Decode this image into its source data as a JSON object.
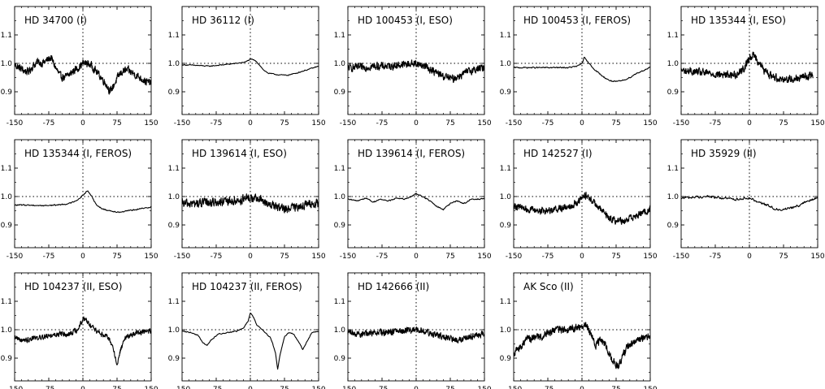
{
  "chart_data": [
    {
      "type": "line",
      "title": "HD 34700 (I)",
      "xticks": [
        -150,
        -75,
        0,
        75,
        150
      ],
      "yticks": [
        0.9,
        1.0,
        1.1
      ],
      "ytick_labels": [
        "0.9",
        "1.0",
        "1.1"
      ],
      "xlim": [
        -150,
        150
      ],
      "ylim": [
        0.82,
        1.2
      ],
      "series": [
        {
          "noise": 0.012,
          "x": [
            -150,
            -140,
            -130,
            -120,
            -110,
            -100,
            -90,
            -80,
            -70,
            -60,
            -50,
            -40,
            -30,
            -20,
            -10,
            0,
            10,
            20,
            30,
            40,
            50,
            60,
            70,
            80,
            90,
            100,
            110,
            120,
            130,
            140,
            150
          ],
          "y": [
            0.995,
            0.985,
            0.975,
            0.97,
            0.99,
            1.005,
            1.0,
            1.01,
            1.02,
            0.985,
            0.955,
            0.95,
            0.96,
            0.975,
            0.985,
            1.0,
            1.0,
            0.99,
            0.97,
            0.95,
            0.93,
            0.9,
            0.93,
            0.96,
            0.975,
            0.975,
            0.965,
            0.955,
            0.945,
            0.935,
            0.93
          ]
        }
      ]
    },
    {
      "type": "line",
      "title": "HD 36112 (I)",
      "xticks": [
        -150,
        -75,
        0,
        75,
        150
      ],
      "yticks": [
        0.9,
        1.0,
        1.1
      ],
      "ytick_labels": [
        "0.9",
        "1.0",
        "1.1"
      ],
      "xlim": [
        -150,
        150
      ],
      "ylim": [
        0.82,
        1.2
      ],
      "series": [
        {
          "noise": 0.0015,
          "x": [
            -150,
            -120,
            -90,
            -60,
            -30,
            -10,
            0,
            10,
            20,
            30,
            40,
            60,
            80,
            100,
            120,
            140,
            150
          ],
          "y": [
            0.995,
            0.993,
            0.99,
            0.995,
            1.0,
            1.005,
            1.015,
            1.01,
            0.995,
            0.975,
            0.965,
            0.96,
            0.958,
            0.965,
            0.975,
            0.985,
            0.99
          ]
        }
      ]
    },
    {
      "type": "line",
      "title": "HD 100453 (I, ESO)",
      "xticks": [
        -150,
        -75,
        0,
        75,
        150
      ],
      "yticks": [
        0.9,
        1.0,
        1.1
      ],
      "ytick_labels": [
        "0.9",
        "1.0",
        "1.1"
      ],
      "xlim": [
        -150,
        150
      ],
      "ylim": [
        0.82,
        1.2
      ],
      "series": [
        {
          "noise": 0.012,
          "x": [
            -150,
            -120,
            -90,
            -60,
            -30,
            0,
            20,
            40,
            60,
            80,
            100,
            120,
            150
          ],
          "y": [
            0.985,
            0.985,
            0.99,
            0.99,
            0.995,
            1.0,
            0.99,
            0.97,
            0.955,
            0.945,
            0.96,
            0.975,
            0.985
          ]
        }
      ]
    },
    {
      "type": "line",
      "title": "HD 100453 (I, FEROS)",
      "xticks": [
        -150,
        -75,
        0,
        75,
        150
      ],
      "yticks": [
        0.9,
        1.0,
        1.1
      ],
      "ytick_labels": [
        "0.9",
        "1.0",
        "1.1"
      ],
      "xlim": [
        -150,
        150
      ],
      "ylim": [
        0.82,
        1.2
      ],
      "series": [
        {
          "noise": 0.002,
          "x": [
            -150,
            -120,
            -90,
            -60,
            -30,
            -10,
            0,
            5,
            15,
            30,
            45,
            60,
            75,
            90,
            105,
            120,
            135,
            150
          ],
          "y": [
            0.985,
            0.985,
            0.985,
            0.985,
            0.985,
            0.99,
            1.0,
            1.02,
            1.0,
            0.975,
            0.955,
            0.94,
            0.935,
            0.94,
            0.95,
            0.965,
            0.975,
            0.985
          ]
        }
      ]
    },
    {
      "type": "line",
      "title": "HD 135344 (I, ESO)",
      "xticks": [
        -150,
        -75,
        0,
        75,
        150
      ],
      "yticks": [
        0.9,
        1.0,
        1.1
      ],
      "ytick_labels": [
        "0.9",
        "1.0",
        "1.1"
      ],
      "xlim": [
        -150,
        150
      ],
      "ylim": [
        0.82,
        1.2
      ],
      "series": [
        {
          "noise": 0.012,
          "x": [
            -150,
            -120,
            -90,
            -60,
            -30,
            -10,
            0,
            10,
            20,
            35,
            50,
            70,
            90,
            110,
            130,
            140
          ],
          "y": [
            0.975,
            0.97,
            0.965,
            0.96,
            0.96,
            0.985,
            1.02,
            1.03,
            1.005,
            0.97,
            0.955,
            0.945,
            0.945,
            0.95,
            0.955,
            0.96
          ]
        }
      ]
    },
    {
      "type": "line",
      "title": "HD 135344 (I, FEROS)",
      "xticks": [
        -150,
        -75,
        0,
        75,
        150
      ],
      "yticks": [
        0.9,
        1.0,
        1.1
      ],
      "ytick_labels": [
        "0.9",
        "1.0",
        "1.1"
      ],
      "xlim": [
        -150,
        150
      ],
      "ylim": [
        0.82,
        1.2
      ],
      "series": [
        {
          "noise": 0.002,
          "x": [
            -150,
            -120,
            -90,
            -60,
            -30,
            -10,
            0,
            10,
            20,
            30,
            45,
            60,
            80,
            100,
            120,
            140,
            150
          ],
          "y": [
            0.97,
            0.97,
            0.968,
            0.97,
            0.975,
            0.99,
            1.005,
            1.02,
            1.0,
            0.97,
            0.955,
            0.95,
            0.945,
            0.95,
            0.955,
            0.96,
            0.965
          ]
        }
      ]
    },
    {
      "type": "line",
      "title": "HD 139614 (I, ESO)",
      "xticks": [
        -150,
        -75,
        0,
        75,
        150
      ],
      "yticks": [
        0.9,
        1.0,
        1.1
      ],
      "ytick_labels": [
        "0.9",
        "1.0",
        "1.1"
      ],
      "xlim": [
        -150,
        150
      ],
      "ylim": [
        0.82,
        1.2
      ],
      "series": [
        {
          "noise": 0.014,
          "x": [
            -150,
            -120,
            -90,
            -60,
            -30,
            0,
            20,
            40,
            60,
            80,
            100,
            120,
            150
          ],
          "y": [
            0.975,
            0.975,
            0.98,
            0.98,
            0.985,
            0.995,
            0.99,
            0.975,
            0.96,
            0.955,
            0.965,
            0.97,
            0.975
          ]
        }
      ]
    },
    {
      "type": "line",
      "title": "HD 139614 (I, FEROS)",
      "xticks": [
        -150,
        -75,
        0,
        75,
        150
      ],
      "yticks": [
        0.9,
        1.0,
        1.1
      ],
      "ytick_labels": [
        "0.9",
        "1.0",
        "1.1"
      ],
      "xlim": [
        -150,
        150
      ],
      "ylim": [
        0.82,
        1.2
      ],
      "series": [
        {
          "noise": 0.002,
          "x": [
            -150,
            -130,
            -110,
            -95,
            -80,
            -60,
            -40,
            -25,
            -10,
            0,
            15,
            30,
            45,
            60,
            75,
            90,
            105,
            120,
            140,
            150
          ],
          "y": [
            0.99,
            0.985,
            0.995,
            0.98,
            0.99,
            0.985,
            0.995,
            0.99,
            1.0,
            1.01,
            1.0,
            0.985,
            0.965,
            0.955,
            0.975,
            0.985,
            0.975,
            0.99,
            0.99,
            0.995
          ]
        }
      ]
    },
    {
      "type": "line",
      "title": "HD 142527 (I)",
      "xticks": [
        -150,
        -75,
        0,
        75,
        150
      ],
      "yticks": [
        0.9,
        1.0,
        1.1
      ],
      "ytick_labels": [
        "0.9",
        "1.0",
        "1.1"
      ],
      "xlim": [
        -150,
        150
      ],
      "ylim": [
        0.82,
        1.2
      ],
      "series": [
        {
          "noise": 0.011,
          "x": [
            -150,
            -120,
            -90,
            -60,
            -30,
            -10,
            0,
            10,
            20,
            40,
            60,
            75,
            90,
            110,
            130,
            150
          ],
          "y": [
            0.97,
            0.955,
            0.95,
            0.955,
            0.965,
            0.98,
            0.995,
            1.005,
            0.99,
            0.955,
            0.925,
            0.915,
            0.915,
            0.925,
            0.94,
            0.955
          ]
        }
      ]
    },
    {
      "type": "line",
      "title": "HD 35929 (II)",
      "xticks": [
        -150,
        -75,
        0,
        75,
        150
      ],
      "yticks": [
        0.9,
        1.0,
        1.1
      ],
      "ytick_labels": [
        "0.9",
        "1.0",
        "1.1"
      ],
      "xlim": [
        -150,
        150
      ],
      "ylim": [
        0.82,
        1.2
      ],
      "series": [
        {
          "noise": 0.004,
          "x": [
            -150,
            -120,
            -90,
            -60,
            -30,
            -10,
            0,
            15,
            30,
            45,
            60,
            75,
            90,
            110,
            130,
            150
          ],
          "y": [
            0.995,
            0.998,
            1.0,
            0.995,
            0.99,
            0.995,
            0.995,
            0.985,
            0.975,
            0.965,
            0.955,
            0.955,
            0.96,
            0.97,
            0.985,
            0.995
          ]
        }
      ]
    },
    {
      "type": "line",
      "title": "HD 104237 (II, ESO)",
      "xticks": [
        -150,
        -75,
        0,
        75,
        150
      ],
      "yticks": [
        0.9,
        1.0,
        1.1
      ],
      "ytick_labels": [
        "0.9",
        "1.0",
        "1.1"
      ],
      "xlim": [
        -150,
        150
      ],
      "ylim": [
        0.82,
        1.2
      ],
      "series": [
        {
          "noise": 0.008,
          "x": [
            -150,
            -130,
            -110,
            -90,
            -70,
            -50,
            -30,
            -10,
            0,
            10,
            25,
            40,
            55,
            65,
            75,
            85,
            95,
            110,
            125,
            140,
            150
          ],
          "y": [
            0.975,
            0.96,
            0.97,
            0.975,
            0.98,
            0.985,
            0.985,
            1.0,
            1.04,
            1.03,
            1.0,
            0.985,
            0.975,
            0.94,
            0.88,
            0.94,
            0.975,
            0.985,
            0.99,
            0.995,
            0.995
          ]
        }
      ]
    },
    {
      "type": "line",
      "title": "HD 104237 (II, FEROS)",
      "xticks": [
        -150,
        -75,
        0,
        75,
        150
      ],
      "yticks": [
        0.9,
        1.0,
        1.1
      ],
      "ytick_labels": [
        "0.9",
        "1.0",
        "1.1"
      ],
      "xlim": [
        -150,
        150
      ],
      "ylim": [
        0.82,
        1.2
      ],
      "series": [
        {
          "noise": 0.0015,
          "x": [
            -150,
            -130,
            -115,
            -105,
            -95,
            -85,
            -70,
            -50,
            -30,
            -15,
            -5,
            0,
            5,
            15,
            30,
            45,
            55,
            60,
            65,
            75,
            85,
            95,
            105,
            115,
            125,
            135,
            150
          ],
          "y": [
            0.995,
            0.99,
            0.98,
            0.955,
            0.945,
            0.965,
            0.985,
            0.99,
            0.995,
            1.005,
            1.03,
            1.06,
            1.05,
            1.015,
            0.995,
            0.97,
            0.92,
            0.86,
            0.91,
            0.975,
            0.99,
            0.985,
            0.96,
            0.93,
            0.96,
            0.99,
            0.995
          ]
        }
      ]
    },
    {
      "type": "line",
      "title": "HD 142666 (II)",
      "xticks": [
        -150,
        -75,
        0,
        75,
        150
      ],
      "yticks": [
        0.9,
        1.0,
        1.1
      ],
      "ytick_labels": [
        "0.9",
        "1.0",
        "1.1"
      ],
      "xlim": [
        -150,
        150
      ],
      "ylim": [
        0.82,
        1.2
      ],
      "series": [
        {
          "noise": 0.01,
          "x": [
            -150,
            -120,
            -90,
            -60,
            -30,
            0,
            20,
            40,
            60,
            80,
            100,
            120,
            150
          ],
          "y": [
            0.99,
            0.985,
            0.99,
            0.99,
            0.995,
            1.0,
            0.995,
            0.985,
            0.975,
            0.965,
            0.965,
            0.975,
            0.985
          ]
        }
      ]
    },
    {
      "type": "line",
      "title": "AK Sco (II)",
      "xticks": [
        -150,
        -75,
        0,
        75,
        150
      ],
      "yticks": [
        0.9,
        1.0,
        1.1
      ],
      "ytick_labels": [
        "0.9",
        "1.0",
        "1.1"
      ],
      "xlim": [
        -150,
        150
      ],
      "ylim": [
        0.82,
        1.2
      ],
      "series": [
        {
          "noise": 0.012,
          "x": [
            -150,
            -140,
            -130,
            -120,
            -110,
            -100,
            -90,
            -75,
            -60,
            -45,
            -30,
            -20,
            -10,
            0,
            10,
            20,
            30,
            40,
            50,
            60,
            70,
            80,
            90,
            100,
            110,
            120,
            130,
            140,
            150
          ],
          "y": [
            0.92,
            0.93,
            0.95,
            0.965,
            0.97,
            0.975,
            0.975,
            0.985,
            0.995,
            1.0,
            1.0,
            1.005,
            1.005,
            1.01,
            1.015,
            0.985,
            0.945,
            0.965,
            0.955,
            0.915,
            0.885,
            0.87,
            0.91,
            0.94,
            0.955,
            0.96,
            0.97,
            0.975,
            0.98
          ]
        }
      ]
    }
  ]
}
